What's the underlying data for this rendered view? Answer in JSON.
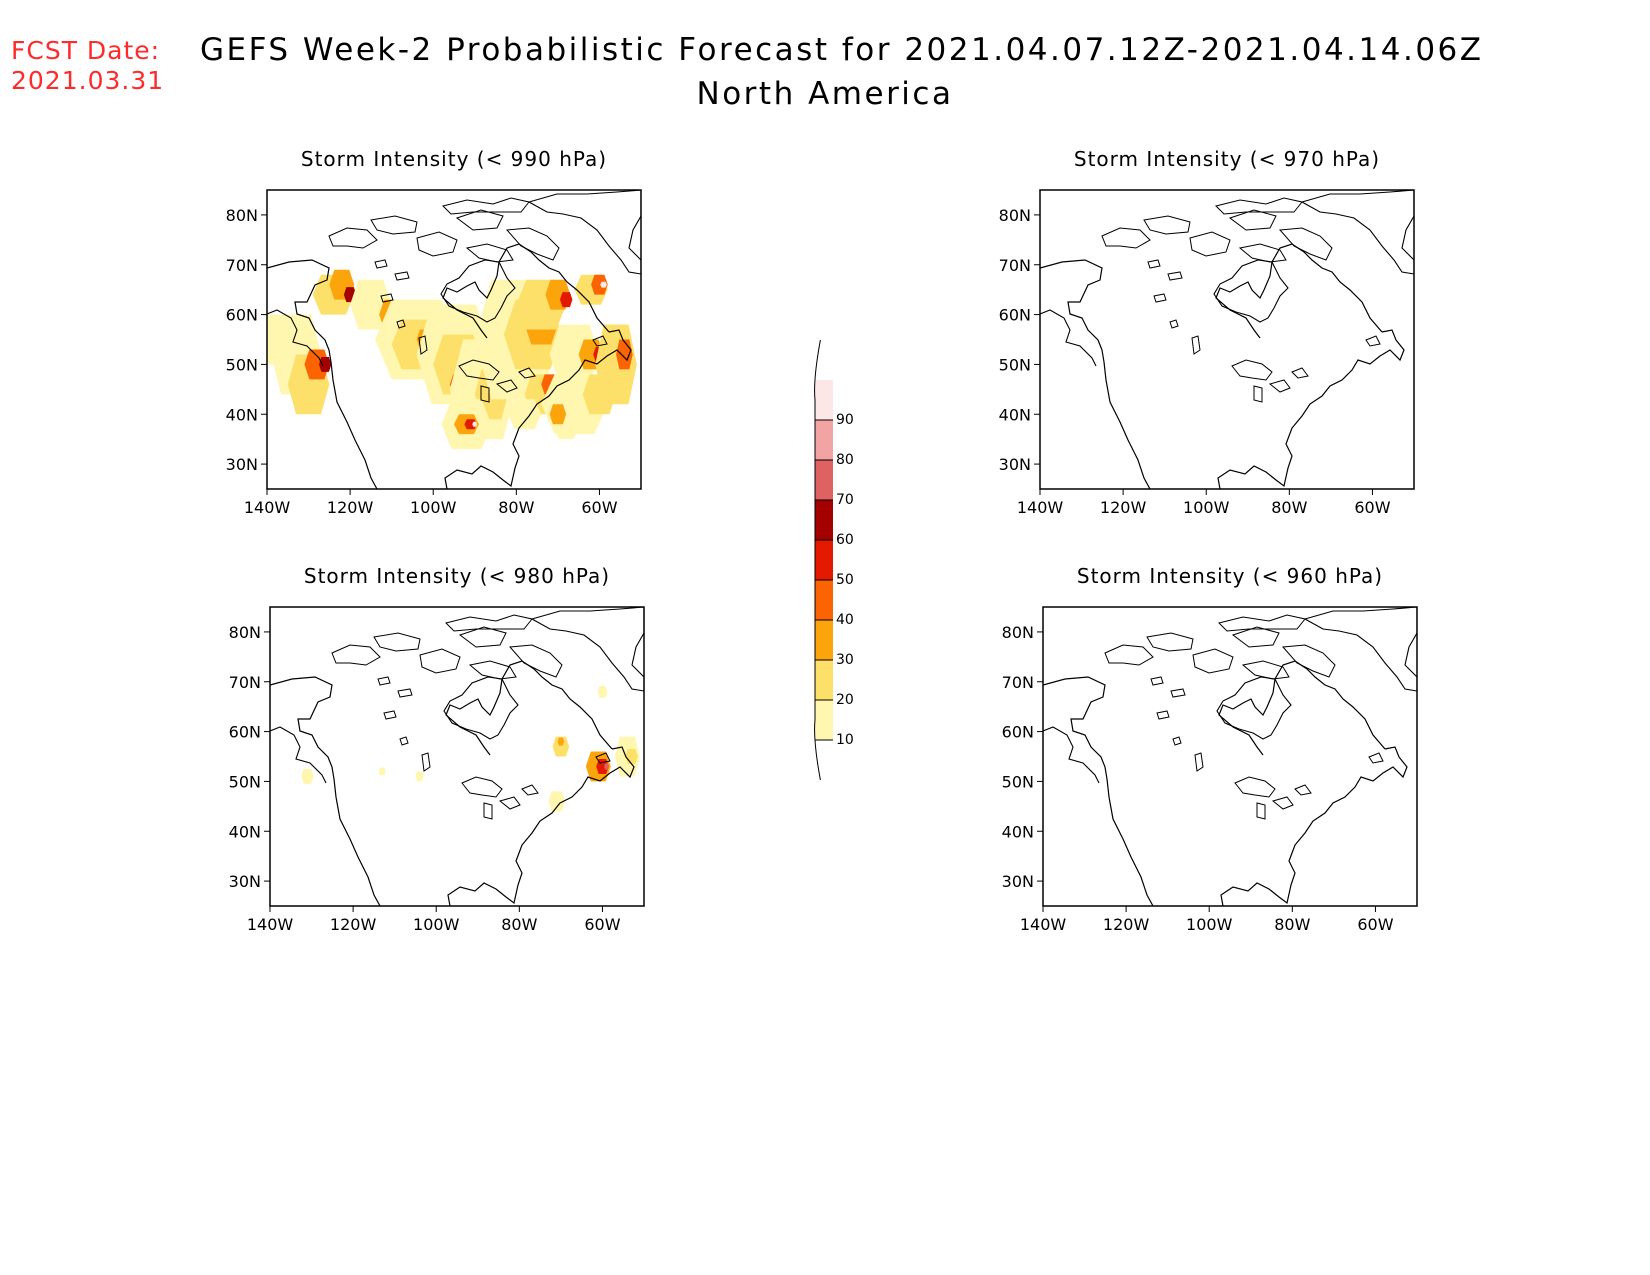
{
  "header": {
    "fcst_label": "FCST Date:",
    "fcst_date": "2021.03.31",
    "title": "GEFS Week-2 Probabilistic Forecast for 2021.04.07.12Z-2021.04.14.06Z",
    "subtitle": "North America"
  },
  "panels": [
    {
      "id": "p990",
      "title": "Storm Intensity (< 990 hPa)",
      "coverage": "widespread"
    },
    {
      "id": "p970",
      "title": "Storm Intensity (< 970 hPa)",
      "coverage": "none"
    },
    {
      "id": "p980",
      "title": "Storm Intensity (< 980 hPa)",
      "coverage": "sparse"
    },
    {
      "id": "p960",
      "title": "Storm Intensity (< 960 hPa)",
      "coverage": "none"
    }
  ],
  "axes": {
    "lat_labels": [
      "80N",
      "70N",
      "60N",
      "50N",
      "40N",
      "30N"
    ],
    "lon_labels": [
      "140W",
      "120W",
      "100W",
      "80W",
      "60W"
    ],
    "lat_range": [
      25,
      85
    ],
    "lon_range": [
      -140,
      -50
    ]
  },
  "colorbar": {
    "levels": [
      "10",
      "20",
      "30",
      "40",
      "50",
      "60",
      "70",
      "80",
      "90"
    ],
    "colors": [
      "#fff7b0",
      "#fde06a",
      "#fca40c",
      "#fb6400",
      "#e41a00",
      "#a50000",
      "#de6262",
      "#f2a4a4",
      "#fde6e6"
    ]
  }
}
